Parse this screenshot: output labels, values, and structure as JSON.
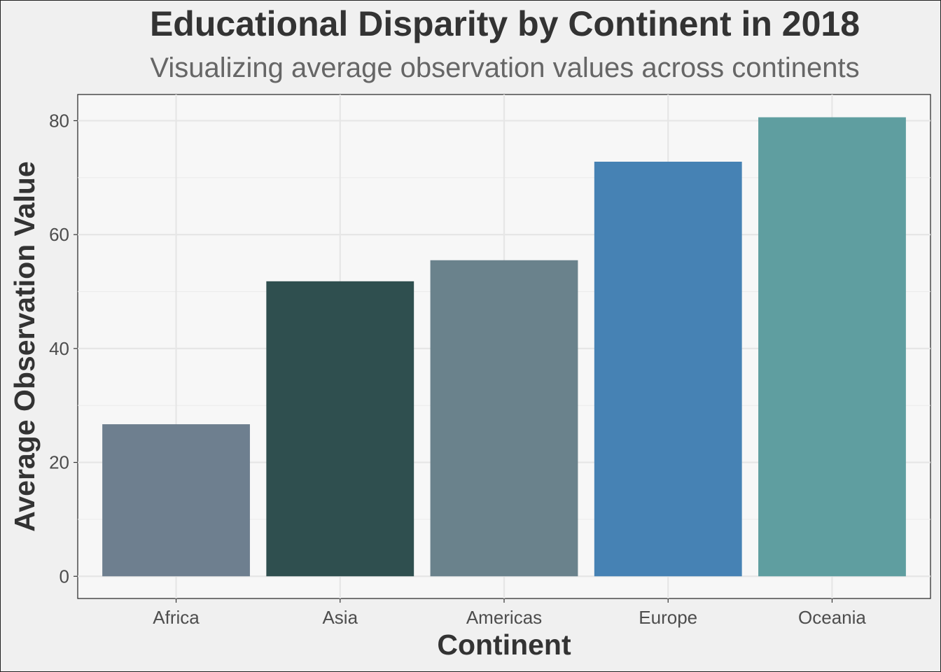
{
  "chart_data": {
    "type": "bar",
    "title": "Educational Disparity by Continent in 2018",
    "subtitle": "Visualizing average observation values across continents",
    "xlabel": "Continent",
    "ylabel": "Average Observation Value",
    "categories": [
      "Africa",
      "Asia",
      "Americas",
      "Europe",
      "Oceania"
    ],
    "values": [
      26.7,
      51.8,
      55.5,
      72.8,
      80.6
    ],
    "colors": [
      "#6E7F8F",
      "#2F4F4F",
      "#6A828C",
      "#4682B4",
      "#5F9EA0"
    ],
    "ylim": [
      -3.9,
      84.6
    ],
    "yticks": [
      0,
      20,
      40,
      60,
      80
    ],
    "grid": true,
    "legend": "none",
    "background": "#f7f7f7"
  }
}
